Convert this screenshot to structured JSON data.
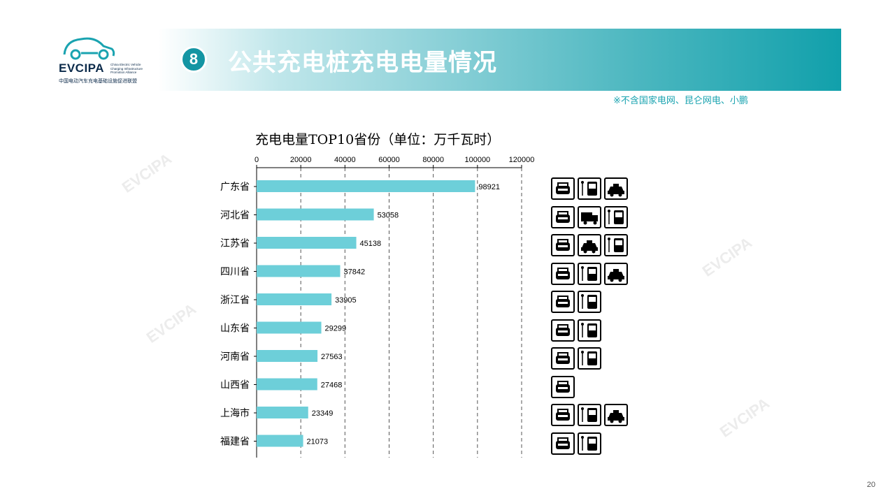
{
  "header": {
    "logo_text": "EVCIPA",
    "logo_subtitle_en": "China Electric Vehicle Charging Infrastructure Promotion Alliance",
    "logo_subtitle_cn": "中国电动汽车充电基础设施促进联盟",
    "section_number": "8",
    "title": "公共充电桩充电电量情况",
    "note": "※不含国家电网、昆仑网电、小鹏"
  },
  "watermark_text": "EVCIPA",
  "page_number": "20",
  "chart_data": {
    "type": "bar",
    "orientation": "horizontal",
    "title": "充电电量TOP10省份（单位：万千瓦时）",
    "categories": [
      "广东省",
      "河北省",
      "江苏省",
      "四川省",
      "浙江省",
      "山东省",
      "河南省",
      "山西省",
      "上海市",
      "福建省"
    ],
    "values": [
      98921,
      53058,
      45138,
      37842,
      33905,
      29299,
      27563,
      27468,
      23349,
      21073
    ],
    "data_labels": [
      "98921",
      "53058",
      "45138",
      "37842",
      "33905",
      "29299",
      "27563",
      "27468",
      "23349",
      "21073"
    ],
    "xlim": [
      0,
      120000
    ],
    "xticks": [
      "0",
      "20000",
      "40000",
      "60000",
      "80000",
      "100000",
      "120000"
    ],
    "xtick_values": [
      0,
      20000,
      40000,
      60000,
      80000,
      100000,
      120000
    ],
    "axis_position": "top",
    "grid": "vertical dashed",
    "bar_color": "#6dcfd9",
    "legend": "none"
  },
  "vehicle_icons": [
    [
      "car-icon",
      "bus-icon",
      "taxi-icon"
    ],
    [
      "car-icon",
      "truck-icon",
      "bus-icon"
    ],
    [
      "car-icon",
      "taxi-icon",
      "bus-icon"
    ],
    [
      "car-icon",
      "bus-icon",
      "taxi-icon"
    ],
    [
      "car-icon",
      "bus-icon"
    ],
    [
      "car-icon",
      "bus-icon"
    ],
    [
      "car-icon",
      "bus-icon"
    ],
    [
      "car-icon"
    ],
    [
      "car-icon",
      "bus-icon",
      "taxi-icon"
    ],
    [
      "car-icon",
      "bus-icon"
    ]
  ],
  "colors": {
    "banner_end": "#11a0ab",
    "accent": "#1aa3b0",
    "badge": "#1495a3"
  }
}
